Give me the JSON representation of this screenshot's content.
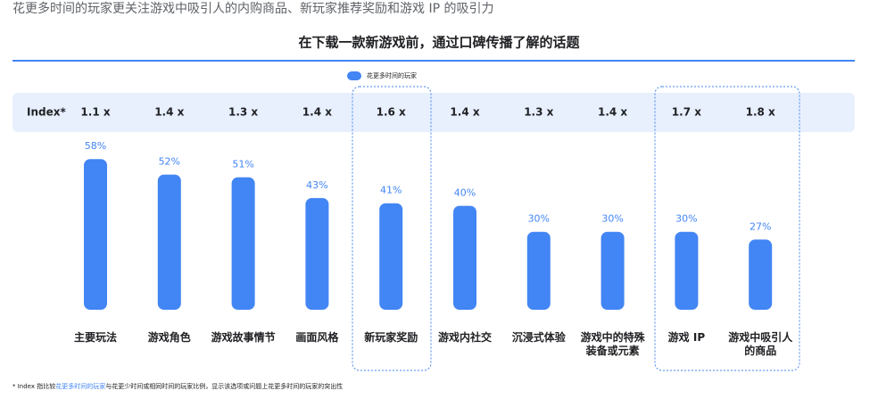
{
  "header": {
    "title": "花更多时间的玩家更关注游戏中吸引人的内购商品、新玩家推荐奖励和游戏 IP 的吸引力"
  },
  "chart_data": {
    "type": "bar",
    "title": "在下载一款新游戏前，通过口碑传播了解的话题",
    "categories": [
      [
        "主要玩法"
      ],
      [
        "游戏角色"
      ],
      [
        "游戏故事情节"
      ],
      [
        "画面风格"
      ],
      [
        "新玩家奖励"
      ],
      [
        "游戏内社交"
      ],
      [
        "沉浸式体验"
      ],
      [
        "游戏中的特殊",
        "装备或元素"
      ],
      [
        "游戏 IP"
      ],
      [
        "游戏中吸引人",
        "的商品"
      ]
    ],
    "series": [
      {
        "name": "花更多时间的玩家",
        "color": "#4285f4",
        "values": [
          58,
          52,
          51,
          43,
          41,
          40,
          30,
          30,
          30,
          27
        ],
        "value_labels": [
          "58%",
          "52%",
          "51%",
          "43%",
          "41%",
          "40%",
          "30%",
          "30%",
          "30%",
          "27%"
        ]
      }
    ],
    "index_label": "Index*",
    "index": [
      "1.1 x",
      "1.4 x",
      "1.3 x",
      "1.4 x",
      "1.6 x",
      "1.4 x",
      "1.3 x",
      "1.4 x",
      "1.7 x",
      "1.8 x"
    ],
    "footnote": [
      "* Index 指比较",
      "花更多时间的玩家",
      "与花更少时间或相同时间的玩家比例，显示该选项或问题上花更多时间的玩家的突出性"
    ]
  }
}
